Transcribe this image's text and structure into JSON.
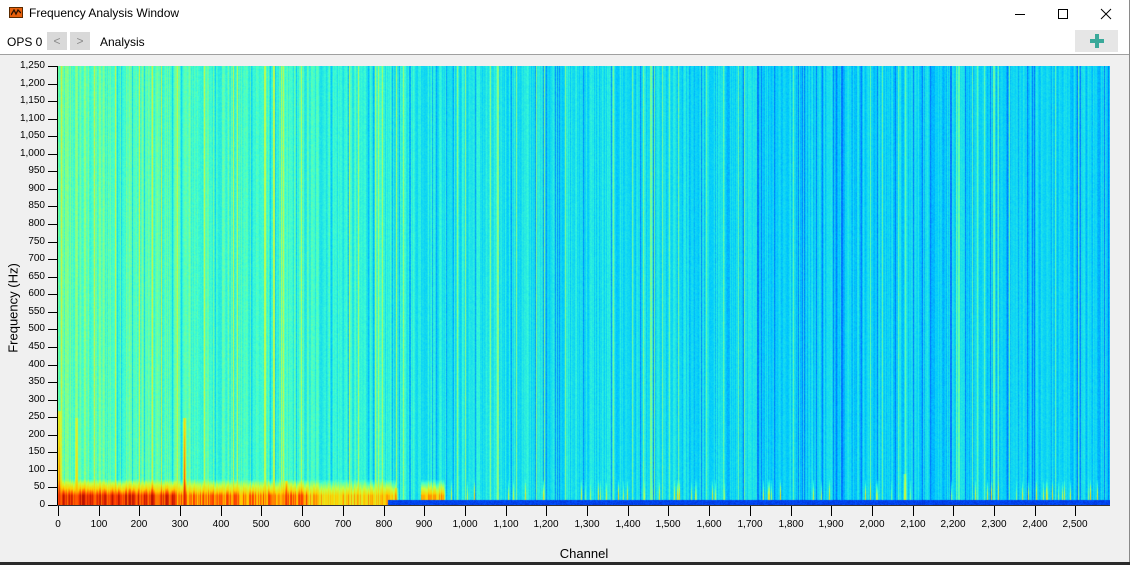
{
  "window": {
    "title": "Frequency Analysis Window",
    "icon": "chart-app-icon",
    "controls": {
      "minimize": "minimize-icon",
      "maximize": "maximize-icon",
      "close": "close-icon"
    }
  },
  "toolbar": {
    "ops_label": "OPS 0",
    "prev_label": "<",
    "next_label": ">",
    "view_label": "Analysis",
    "add_icon": "plus-icon",
    "add_color": "#3aa99a"
  },
  "chart_data": {
    "type": "heatmap",
    "title": "",
    "xlabel": "Channel",
    "ylabel": "Frequency (Hz)",
    "xlim": [
      0,
      2585
    ],
    "ylim": [
      0,
      1250
    ],
    "x_ticks": [
      0,
      100,
      200,
      300,
      400,
      500,
      600,
      700,
      800,
      900,
      1000,
      1100,
      1200,
      1300,
      1400,
      1500,
      1600,
      1700,
      1800,
      1900,
      2000,
      2100,
      2200,
      2300,
      2400,
      2500
    ],
    "x_tick_labels": [
      "0",
      "100",
      "200",
      "300",
      "400",
      "500",
      "600",
      "700",
      "800",
      "900",
      "1,000",
      "1,100",
      "1,200",
      "1,300",
      "1,400",
      "1,500",
      "1,600",
      "1,700",
      "1,800",
      "1,900",
      "2,000",
      "2,100",
      "2,200",
      "2,300",
      "2,400",
      "2,500"
    ],
    "y_ticks": [
      0,
      50,
      100,
      150,
      200,
      250,
      300,
      350,
      400,
      450,
      500,
      550,
      600,
      650,
      700,
      750,
      800,
      850,
      900,
      950,
      1000,
      1050,
      1100,
      1150,
      1200,
      1250
    ],
    "y_tick_labels": [
      "0",
      "50",
      "100",
      "150",
      "200",
      "250",
      "300",
      "350",
      "400",
      "450",
      "500",
      "550",
      "600",
      "650",
      "700",
      "750",
      "800",
      "850",
      "900",
      "950",
      "1,000",
      "1,050",
      "1,100",
      "1,150",
      "1,200",
      "1,250"
    ],
    "colormap": "jet",
    "colormap_stops": [
      "#00008f",
      "#0050ff",
      "#00c8ff",
      "#40ffd0",
      "#c8ff40",
      "#ffd000",
      "#ff4000",
      "#a00000"
    ],
    "background_level": {
      "description": "Broadband level high (green-cyan) at low channels, decreasing to cyan/blue at high channels",
      "channel_points": [
        0,
        500,
        1000,
        1600,
        2585
      ],
      "levels": [
        0.46,
        0.42,
        0.36,
        0.32,
        0.31
      ]
    },
    "low_frequency_band": {
      "description": "Strong energy (red/orange) below ~75 Hz for channels 0-950; sporadic yellow patches above 950",
      "freq_max_hz": 75,
      "segments": [
        {
          "from": 0,
          "to": 290,
          "level": 0.88
        },
        {
          "from": 290,
          "to": 610,
          "level": 0.8
        },
        {
          "from": 610,
          "to": 830,
          "level": 0.7
        },
        {
          "from": 890,
          "to": 950,
          "level": 0.72
        }
      ]
    },
    "spikes": [
      {
        "channel": 2,
        "freq_top_hz": 270,
        "level": 0.9
      },
      {
        "channel": 45,
        "freq_top_hz": 250,
        "level": 0.75
      },
      {
        "channel": 310,
        "freq_top_hz": 250,
        "level": 0.95
      },
      {
        "channel": 560,
        "freq_top_hz": 70,
        "level": 0.9
      },
      {
        "channel": 830,
        "freq_top_hz": 50,
        "level": 0.85
      },
      {
        "channel": 2080,
        "freq_top_hz": 90,
        "level": 0.7
      }
    ],
    "dc_band": {
      "description": "Dark blue band at 0-15 Hz for channels > 810",
      "from_channel": 810,
      "freq_max_hz": 15,
      "level": 0.12
    },
    "grid": false,
    "legend": null
  }
}
